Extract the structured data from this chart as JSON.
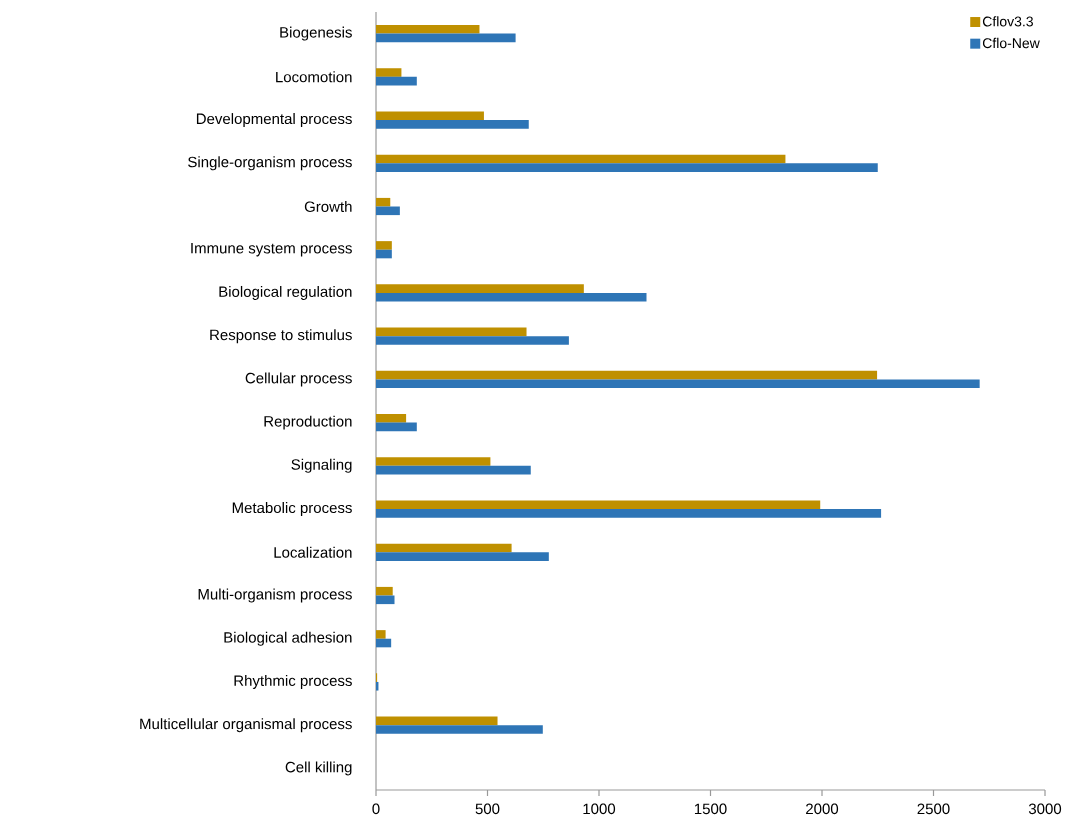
{
  "chart_data": {
    "type": "bar",
    "orientation": "horizontal",
    "categories": [
      "Biogenesis",
      "Locomotion",
      "Developmental process",
      "Single-organism process",
      "Growth",
      "Immune system process",
      "Biological regulation",
      "Response to stimulus",
      "Cellular process",
      "Reproduction",
      "Signaling",
      "Metabolic process",
      "Localization",
      "Multi-organism process",
      "Biological adhesion",
      "Rhythmic process",
      "Multicellular organismal process",
      "Cell killing"
    ],
    "series": [
      {
        "name": "Cflov3.3",
        "color": "#bf9000",
        "values": [
          464,
          114,
          484,
          1836,
          64,
          71,
          932,
          675,
          2247,
          135,
          513,
          1992,
          608,
          75,
          43,
          5,
          545,
          0
        ]
      },
      {
        "name": "Cflo-New",
        "color": "#2e75b6",
        "values": [
          626,
          183,
          685,
          2250,
          107,
          71,
          1213,
          865,
          2707,
          183,
          694,
          2265,
          775,
          83,
          68,
          11,
          748,
          0
        ]
      }
    ],
    "xlim": [
      0,
      3000
    ],
    "xticks": [
      0,
      500,
      1000,
      1500,
      2000,
      2500,
      3000
    ],
    "legend": "top right"
  }
}
